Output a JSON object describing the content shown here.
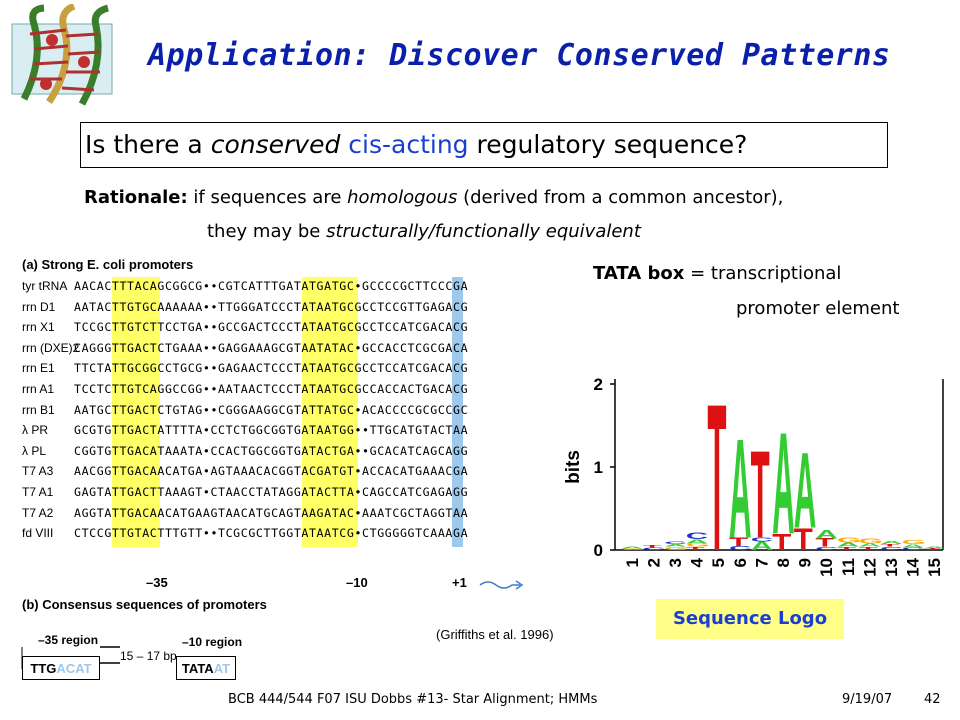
{
  "slide": {
    "title": "Application: Discover Conserved Patterns",
    "question": {
      "pre": "Is there a ",
      "italic": "conserved",
      "blue": "cis-acting",
      "post": " regulatory sequence?"
    },
    "rationale": {
      "label": "Rationale:",
      "line1_a": " if sequences are ",
      "line1_i": "homologous",
      "line1_b": " (derived from a common ancestor),",
      "line2_a": "they may be ",
      "line2_i": "structurally/functionally equivalent"
    },
    "tata": {
      "bold": "TATA box",
      "line1": " = transcriptional",
      "line2": "promoter element"
    },
    "seqlogo_label": "Sequence Logo",
    "footer": {
      "left": "BCB 444/544 F07 ISU Dobbs #13- Star Alignment; HMMs",
      "date": "9/19/07",
      "page": "42"
    }
  },
  "promoter_figure": {
    "heading_a": "(a) Strong E. coli promoters",
    "heading_b": "(b) Consensus sequences of promoters",
    "citation": "(Griffiths et al. 1996)",
    "rows": [
      {
        "gene": "tyr tRNA",
        "seq": "AACACTTTACAGCGGCG••CGTCATTTGATATGATGC•GCCCCGCTTCCCGA"
      },
      {
        "gene": "rrn D1",
        "seq": "AATACTTGTGCAAAAAA••TTGGGATCCCTATAATGCGCCTCCGTTGAGACG"
      },
      {
        "gene": "rrn X1",
        "seq": "TCCGCTTGTCTTCCTGA••GCCGACTCCCTATAATGCGCCTCCATCGACACG"
      },
      {
        "gene": "rrn (DXE)2",
        "seq": "CAGGGTTGACTCTGAAA••GAGGAAAGCGTAATATAC•GCCACCTCGCGACA"
      },
      {
        "gene": "rrn E1",
        "seq": "TTCTATTGCGGCCTGCG••GAGAACTCCCTATAATGCGCCTCCATCGACACG"
      },
      {
        "gene": "rrn A1",
        "seq": "TCCTCTTGTCAGGCCGG••AATAACTCCCTATAATGCGCCACCACTGACACG"
      },
      {
        "gene": "rrn B1",
        "seq": "AATGCTTGACTCTGTAG••CGGGAAGGCGTATTATGC•ACACCCCGCGCCGC"
      },
      {
        "gene": "λ PR",
        "seq": "GCGTGTTGACTATTTTA•CCTCTGGCGGTGATAATGG••TTGCATGTACTAA"
      },
      {
        "gene": "λ PL",
        "seq": "CGGTGTTGACATAAATA•CCACTGGCGGTGATACTGA••GCACATCAGCAGG"
      },
      {
        "gene": "T7 A3",
        "seq": "AACGGTTGACAACATGA•AGTAAACACGGTACGATGT•ACCACATGAAACGA"
      },
      {
        "gene": "T7 A1",
        "seq": "GAGTATTGACTTAAAGT•CTAACCTATAGGATACTTA•CAGCCATCGAGAGG"
      },
      {
        "gene": "T7 A2",
        "seq": "AGGTATTGACAACATGAAGTAACATGCAGTAAGATAC•AAATCGCTAGGTAA"
      },
      {
        "gene": "fd VIII",
        "seq": "CTCCGTTGTACTTTGTT••TCGCGCTTGGTATAATCG•CTGGGGGTCAAAGA"
      }
    ],
    "markers": {
      "m35": "–35",
      "m10": "–10",
      "p1": "+1"
    },
    "consensus": {
      "label35": "–35 region",
      "label10": "–10 region",
      "spacer": "15 – 17 bp",
      "box35_a": "TTG",
      "box35_b": "ACAT",
      "box10_a": "TATA",
      "box10_b": "AT"
    }
  },
  "chart_data": {
    "type": "sequence_logo",
    "ylabel": "bits",
    "ylim": [
      0,
      2
    ],
    "yticks": [
      "0",
      "1",
      "2"
    ],
    "positions": [
      "1",
      "2",
      "3",
      "4",
      "5",
      "6",
      "7",
      "8",
      "9",
      "10",
      "11",
      "12",
      "13",
      "14",
      "15"
    ],
    "stacks": [
      {
        "pos": "1",
        "letters": [
          {
            "l": "G",
            "h": 0.02
          },
          {
            "l": "A",
            "h": 0.02
          }
        ]
      },
      {
        "pos": "2",
        "letters": [
          {
            "l": "C",
            "h": 0.03
          },
          {
            "l": "T",
            "h": 0.03
          }
        ]
      },
      {
        "pos": "3",
        "letters": [
          {
            "l": "G",
            "h": 0.04
          },
          {
            "l": "A",
            "h": 0.03
          },
          {
            "l": "C",
            "h": 0.03
          }
        ]
      },
      {
        "pos": "4",
        "letters": [
          {
            "l": "T",
            "h": 0.04
          },
          {
            "l": "G",
            "h": 0.04
          },
          {
            "l": "A",
            "h": 0.05
          },
          {
            "l": "C",
            "h": 0.08
          }
        ]
      },
      {
        "pos": "5",
        "letters": [
          {
            "l": "T",
            "h": 1.82
          }
        ]
      },
      {
        "pos": "6",
        "letters": [
          {
            "l": "C",
            "h": 0.05
          },
          {
            "l": "T",
            "h": 0.1
          },
          {
            "l": "A",
            "h": 1.23
          }
        ]
      },
      {
        "pos": "7",
        "letters": [
          {
            "l": "A",
            "h": 0.1
          },
          {
            "l": "C",
            "h": 0.05
          },
          {
            "l": "T",
            "h": 1.08
          }
        ]
      },
      {
        "pos": "8",
        "letters": [
          {
            "l": "T",
            "h": 0.2
          },
          {
            "l": "A",
            "h": 1.26
          }
        ]
      },
      {
        "pos": "9",
        "letters": [
          {
            "l": "T",
            "h": 0.27
          },
          {
            "l": "A",
            "h": 0.93
          }
        ]
      },
      {
        "pos": "10",
        "letters": [
          {
            "l": "C",
            "h": 0.04
          },
          {
            "l": "T",
            "h": 0.1
          },
          {
            "l": "A",
            "h": 0.1
          }
        ]
      },
      {
        "pos": "11",
        "letters": [
          {
            "l": "T",
            "h": 0.04
          },
          {
            "l": "A",
            "h": 0.05
          },
          {
            "l": "G",
            "h": 0.06
          }
        ]
      },
      {
        "pos": "12",
        "letters": [
          {
            "l": "T",
            "h": 0.04
          },
          {
            "l": "A",
            "h": 0.04
          },
          {
            "l": "G",
            "h": 0.06
          }
        ]
      },
      {
        "pos": "13",
        "letters": [
          {
            "l": "C",
            "h": 0.04
          },
          {
            "l": "T",
            "h": 0.03
          },
          {
            "l": "A",
            "h": 0.04
          }
        ]
      },
      {
        "pos": "14",
        "letters": [
          {
            "l": "C",
            "h": 0.03
          },
          {
            "l": "A",
            "h": 0.04
          },
          {
            "l": "G",
            "h": 0.05
          }
        ]
      },
      {
        "pos": "15",
        "letters": [
          {
            "l": "T",
            "h": 0.02
          },
          {
            "l": "A",
            "h": 0.02
          }
        ]
      }
    ],
    "colors": {
      "A": "#33cc33",
      "C": "#2233cc",
      "G": "#ffaa00",
      "T": "#dd1111"
    }
  }
}
